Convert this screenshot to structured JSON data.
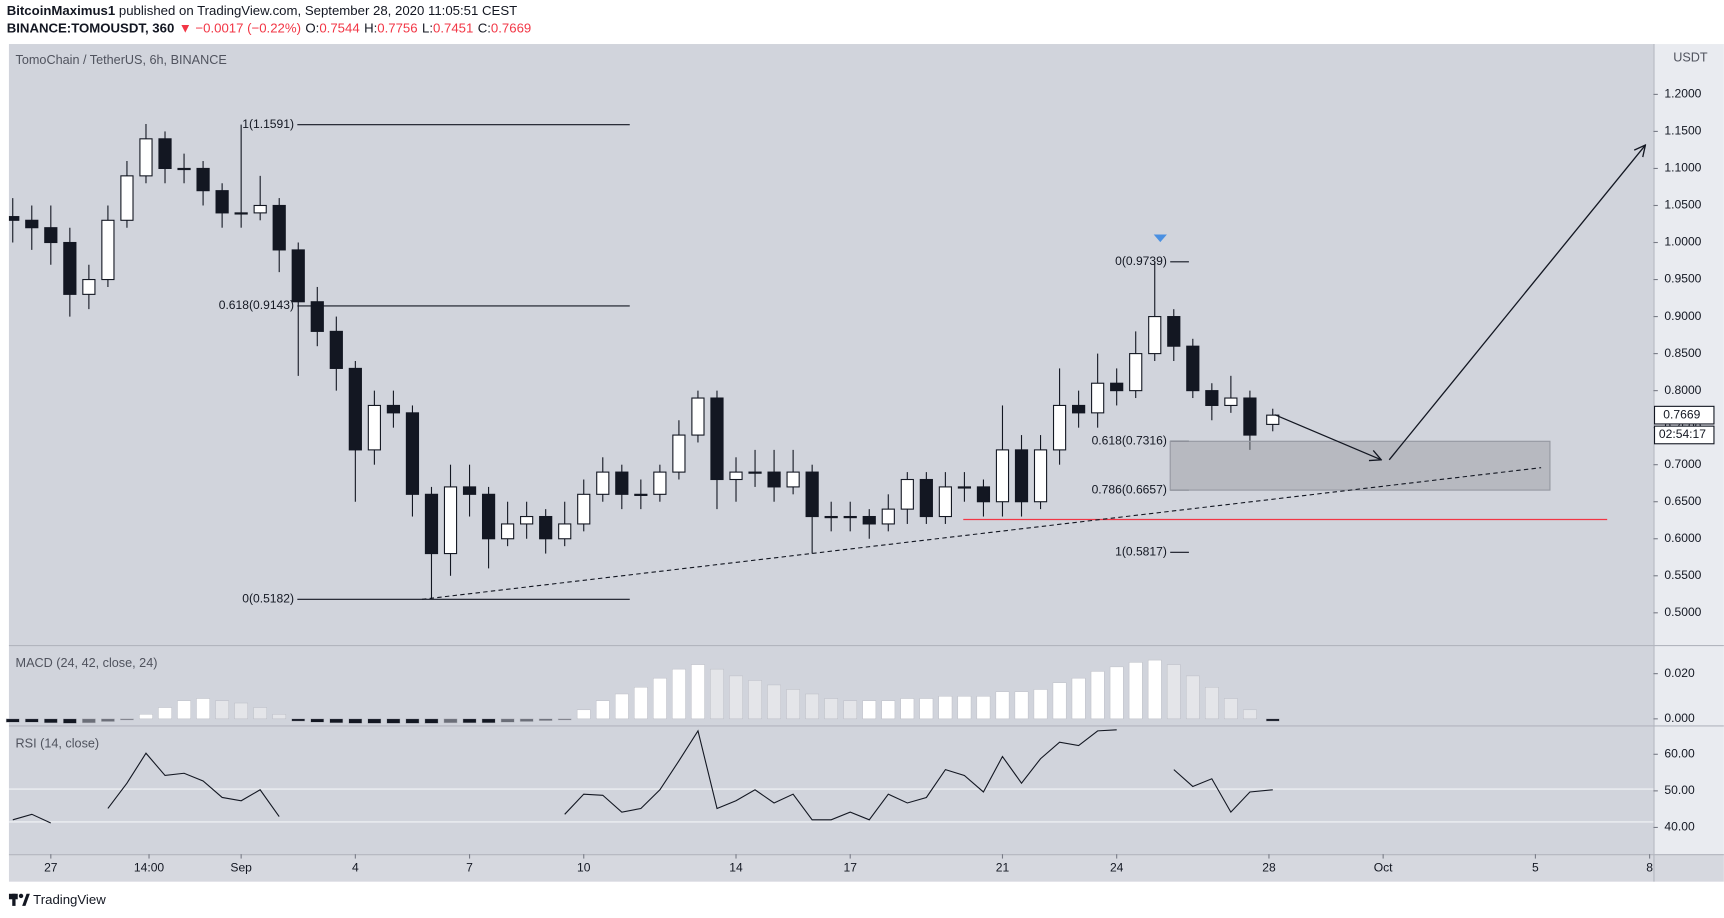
{
  "header": {
    "author": "BitcoinMaximus1",
    "published": " published on TradingView.com, September 28, 2020 11:05:51 CEST",
    "symbol": "BINANCE:TOMOUSDT, 360",
    "change": "▼ −0.0017 (−0.22%)",
    "ohlc_labels": [
      "O:",
      "H:",
      "L:",
      "C:"
    ]
  },
  "footer": {
    "brand": "TradingView"
  },
  "chart_data": [
    {
      "type": "candlestick",
      "title": "TomoChain / TetherUS, 6h, BINANCE",
      "unit": "USDT",
      "countdown": "02:54:17",
      "up_color": "#ffffff",
      "down_color": "#131722",
      "wick_color": "#131722",
      "x": [
        0,
        0.5,
        1,
        1.5,
        2,
        2.5,
        3,
        3.5,
        4,
        4.5,
        5,
        5.5,
        6,
        6.5,
        7,
        7.5,
        8,
        8.5,
        9,
        9.5,
        10,
        10.5,
        11,
        11.5,
        12,
        12.5,
        13,
        13.5,
        14,
        14.5,
        15,
        15.5,
        16,
        16.5,
        17,
        17.5,
        18,
        18.5,
        19,
        19.5,
        20,
        20.5,
        21,
        21.5,
        22,
        22.5,
        23,
        23.5,
        24,
        24.5,
        25,
        25.5,
        26,
        26.5,
        27,
        27.5,
        28,
        28.5,
        29,
        29.5,
        30,
        30.5,
        31,
        31.5,
        32,
        32.5,
        33.1
      ],
      "open": [
        1.035,
        1.03,
        1.02,
        1.0,
        0.93,
        0.95,
        1.03,
        1.09,
        1.14,
        1.1,
        1.1,
        1.07,
        1.04,
        1.04,
        1.05,
        0.99,
        0.92,
        0.88,
        0.83,
        0.72,
        0.78,
        0.77,
        0.66,
        0.58,
        0.67,
        0.66,
        0.6,
        0.62,
        0.63,
        0.6,
        0.62,
        0.66,
        0.69,
        0.66,
        0.66,
        0.69,
        0.74,
        0.79,
        0.68,
        0.69,
        0.69,
        0.67,
        0.69,
        0.63,
        0.63,
        0.63,
        0.62,
        0.64,
        0.68,
        0.63,
        0.67,
        0.67,
        0.65,
        0.72,
        0.65,
        0.72,
        0.78,
        0.77,
        0.81,
        0.8,
        0.85,
        0.9,
        0.86,
        0.8,
        0.78,
        0.79,
        0.7544
      ],
      "high": [
        1.06,
        1.05,
        1.05,
        1.02,
        0.97,
        1.05,
        1.11,
        1.16,
        1.15,
        1.12,
        1.11,
        1.08,
        1.1591,
        1.09,
        1.06,
        1.0,
        0.94,
        0.9,
        0.84,
        0.8,
        0.8,
        0.78,
        0.67,
        0.7,
        0.7,
        0.67,
        0.65,
        0.65,
        0.64,
        0.65,
        0.68,
        0.71,
        0.7,
        0.68,
        0.7,
        0.76,
        0.8,
        0.8,
        0.71,
        0.72,
        0.72,
        0.72,
        0.7,
        0.65,
        0.65,
        0.64,
        0.66,
        0.69,
        0.69,
        0.69,
        0.69,
        0.68,
        0.78,
        0.74,
        0.74,
        0.83,
        0.8,
        0.85,
        0.83,
        0.88,
        0.9739,
        0.91,
        0.87,
        0.81,
        0.82,
        0.8,
        0.7756
      ],
      "low": [
        1.0,
        0.99,
        0.97,
        0.9,
        0.91,
        0.94,
        1.02,
        1.08,
        1.08,
        1.08,
        1.05,
        1.02,
        1.02,
        1.03,
        0.96,
        0.82,
        0.86,
        0.8,
        0.65,
        0.7,
        0.75,
        0.63,
        0.5182,
        0.55,
        0.63,
        0.56,
        0.59,
        0.6,
        0.58,
        0.59,
        0.61,
        0.65,
        0.64,
        0.64,
        0.65,
        0.68,
        0.73,
        0.64,
        0.65,
        0.67,
        0.65,
        0.66,
        0.58,
        0.61,
        0.61,
        0.6,
        0.61,
        0.62,
        0.62,
        0.62,
        0.65,
        0.63,
        0.63,
        0.63,
        0.64,
        0.7,
        0.75,
        0.75,
        0.78,
        0.79,
        0.84,
        0.84,
        0.79,
        0.76,
        0.77,
        0.72,
        0.7451
      ],
      "close": [
        1.03,
        1.02,
        1.0,
        0.93,
        0.95,
        1.03,
        1.09,
        1.14,
        1.1,
        1.1,
        1.07,
        1.04,
        1.04,
        1.05,
        0.99,
        0.92,
        0.88,
        0.83,
        0.72,
        0.78,
        0.77,
        0.66,
        0.58,
        0.67,
        0.66,
        0.6,
        0.62,
        0.63,
        0.6,
        0.62,
        0.66,
        0.69,
        0.66,
        0.66,
        0.69,
        0.74,
        0.79,
        0.68,
        0.69,
        0.69,
        0.67,
        0.69,
        0.63,
        0.63,
        0.63,
        0.62,
        0.64,
        0.68,
        0.63,
        0.67,
        0.67,
        0.65,
        0.72,
        0.65,
        0.72,
        0.78,
        0.77,
        0.81,
        0.8,
        0.85,
        0.9,
        0.86,
        0.8,
        0.78,
        0.79,
        0.74,
        0.7669
      ],
      "xlim": [
        -0.1,
        43.1
      ],
      "xticks": [
        {
          "value": 1,
          "label": "27"
        },
        {
          "value": 3.58,
          "label": "14:00"
        },
        {
          "value": 6,
          "label": "Sep"
        },
        {
          "value": 9,
          "label": "4"
        },
        {
          "value": 12,
          "label": "7"
        },
        {
          "value": 15,
          "label": "10"
        },
        {
          "value": 19,
          "label": "14"
        },
        {
          "value": 22,
          "label": "17"
        },
        {
          "value": 26,
          "label": "21"
        },
        {
          "value": 29,
          "label": "24"
        },
        {
          "value": 33,
          "label": "28"
        },
        {
          "value": 36,
          "label": "Oct"
        },
        {
          "value": 40,
          "label": "5"
        },
        {
          "value": 43,
          "label": "8"
        }
      ],
      "ylim": [
        0.458,
        1.268
      ],
      "yticks": [
        {
          "value": 0.5,
          "label": "0.5000"
        },
        {
          "value": 0.55,
          "label": "0.5500"
        },
        {
          "value": 0.6,
          "label": "0.6000"
        },
        {
          "value": 0.65,
          "label": "0.6500"
        },
        {
          "value": 0.7,
          "label": "0.7000"
        },
        {
          "value": 0.75,
          "label": "0.7500"
        },
        {
          "value": 0.8,
          "label": "0.8000"
        },
        {
          "value": 0.85,
          "label": "0.8500"
        },
        {
          "value": 0.9,
          "label": "0.9000"
        },
        {
          "value": 0.95,
          "label": "0.9500"
        },
        {
          "value": 1.0,
          "label": "1.0000"
        },
        {
          "value": 1.05,
          "label": "1.0500"
        },
        {
          "value": 1.1,
          "label": "1.1000"
        },
        {
          "value": 1.15,
          "label": "1.1500"
        },
        {
          "value": 1.2,
          "label": "1.2000"
        }
      ],
      "fib_levels": [
        {
          "label": "1(1.1591)",
          "value": 1.1591
        },
        {
          "label": "0.618(0.9143)",
          "value": 0.9143
        },
        {
          "label": "0(0.5182)",
          "value": 0.5182
        },
        {
          "label": "0(0.9739)",
          "value": 0.9739
        },
        {
          "label": "0.618(0.7316)",
          "value": 0.7316
        },
        {
          "label": "0.786(0.6657)",
          "value": 0.6657
        },
        {
          "label": "1(0.5817)",
          "value": 0.5817
        }
      ],
      "support_line": 0.626,
      "support_color": "#f23645",
      "trendline": {
        "x": [
          10.75,
          40.15
        ],
        "values": [
          0.5182,
          0.696
        ]
      },
      "arrows": [
        {
          "x": [
            33.15,
            35.95
          ],
          "values": [
            0.7675,
            0.7066
          ]
        },
        {
          "x": [
            36.16,
            42.89
          ],
          "values": [
            0.7066,
            1.1316
          ]
        }
      ]
    },
    {
      "type": "histogram",
      "title": "MACD (24, 42, close, 24)",
      "colors": {
        "pos_up": "#ffffff",
        "pos_down": "#e4e5e9",
        "neg_down": "#131722",
        "neg_up": "#6b6e78"
      },
      "x": [
        0,
        0.5,
        1,
        1.5,
        2,
        2.5,
        3,
        3.5,
        4,
        4.5,
        5,
        5.5,
        6,
        6.5,
        7,
        7.5,
        8,
        8.5,
        9,
        9.5,
        10,
        10.5,
        11,
        11.5,
        12,
        12.5,
        13,
        13.5,
        14,
        14.5,
        15,
        15.5,
        16,
        16.5,
        17,
        17.5,
        18,
        18.5,
        19,
        19.5,
        20,
        20.5,
        21,
        21.5,
        22,
        22.5,
        23,
        23.5,
        24,
        24.5,
        25,
        25.5,
        26,
        26.5,
        27,
        27.5,
        28,
        28.5,
        29,
        29.5,
        30,
        30.5,
        31,
        31.5,
        32,
        32.5,
        33.1
      ],
      "values": [
        -0.0015,
        -0.0015,
        -0.0018,
        -0.002,
        -0.0018,
        -0.0012,
        -0.0005,
        0.002,
        0.005,
        0.008,
        0.009,
        0.008,
        0.007,
        0.005,
        0.002,
        -0.001,
        -0.0015,
        -0.0018,
        -0.002,
        -0.002,
        -0.002,
        -0.002,
        -0.002,
        -0.0018,
        -0.0018,
        -0.0018,
        -0.0015,
        -0.0012,
        -0.0008,
        -0.0005,
        0.004,
        0.008,
        0.011,
        0.014,
        0.018,
        0.022,
        0.024,
        0.022,
        0.019,
        0.017,
        0.015,
        0.013,
        0.011,
        0.009,
        0.008,
        0.008,
        0.008,
        0.009,
        0.009,
        0.01,
        0.01,
        0.01,
        0.012,
        0.012,
        0.013,
        0.016,
        0.018,
        0.021,
        0.023,
        0.025,
        0.026,
        0.024,
        0.019,
        0.014,
        0.009,
        0.004,
        -0.001
      ],
      "xlim": [
        -0.1,
        43.1
      ],
      "ylim": [
        -0.0024,
        0.0317
      ],
      "yticks": [
        {
          "value": 0,
          "label": "0.000"
        },
        {
          "value": 0.02,
          "label": "0.020"
        }
      ]
    },
    {
      "type": "line",
      "title": "RSI (14, close)",
      "color": "#131722",
      "levels": [
        50.5,
        41.5
      ],
      "x": [
        0,
        0.5,
        1,
        1.5,
        2,
        2.5,
        3,
        3.5,
        4,
        4.5,
        5,
        5.5,
        6,
        6.5,
        7,
        7.5,
        8,
        8.5,
        9,
        9.5,
        10,
        10.5,
        11,
        11.5,
        12,
        12.5,
        13,
        13.5,
        14,
        14.5,
        15,
        15.5,
        16,
        16.5,
        17,
        17.5,
        18,
        18.5,
        19,
        19.5,
        20,
        20.5,
        21,
        21.5,
        22,
        22.5,
        23,
        23.5,
        24,
        24.5,
        25,
        25.5,
        26,
        26.5,
        27,
        27.5,
        28,
        28.5,
        29,
        29.5,
        30,
        30.5,
        31,
        31.5,
        32,
        32.5,
        33.1
      ],
      "values": [
        42.1,
        43.6,
        41.2,
        null,
        null,
        45.2,
        52.1,
        60.3,
        54.2,
        54.8,
        52.7,
        48.2,
        47.3,
        50.3,
        43.0,
        null,
        null,
        null,
        null,
        null,
        null,
        null,
        null,
        null,
        null,
        null,
        null,
        null,
        null,
        43.6,
        49.1,
        48.8,
        44.2,
        45.2,
        50.3,
        58.2,
        66.4,
        45.2,
        47.3,
        50.3,
        46.7,
        49.1,
        42.1,
        42.1,
        44.2,
        42.1,
        49.1,
        46.7,
        48.2,
        55.8,
        54.2,
        49.7,
        59.4,
        52.1,
        58.8,
        63.3,
        62.4,
        66.4,
        66.7,
        null,
        null,
        55.8,
        51.2,
        53.3,
        44.2,
        49.7,
        50.3
      ],
      "xlim": [
        -0.1,
        43.1
      ],
      "ylim": [
        33,
        67.3
      ],
      "yticks": [
        {
          "value": 40,
          "label": "40.00"
        },
        {
          "value": 50,
          "label": "50.00"
        },
        {
          "value": 60,
          "label": "60.00"
        }
      ]
    }
  ]
}
